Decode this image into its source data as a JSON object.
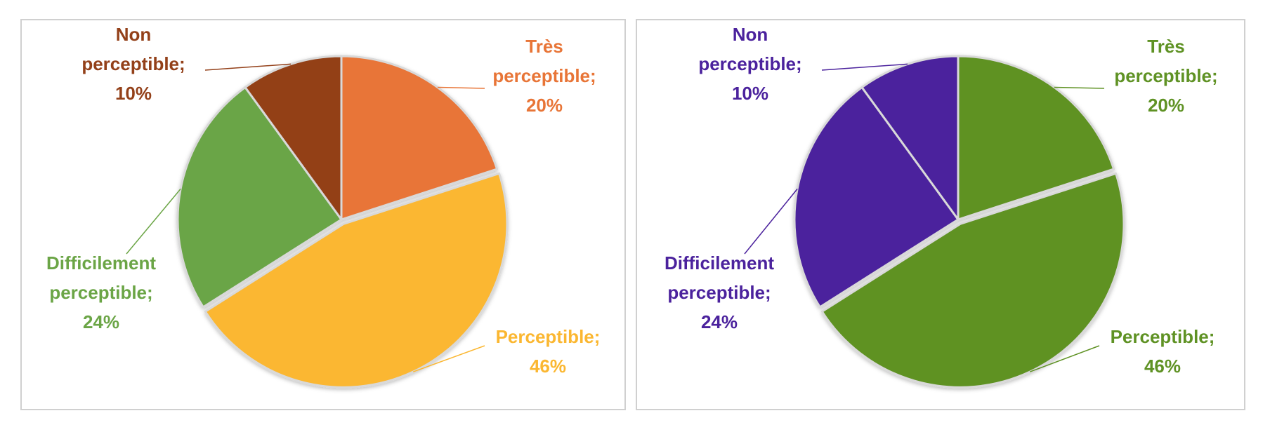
{
  "chart_data": [
    {
      "type": "pie",
      "slices": [
        {
          "label_lines": [
            "Très",
            "perceptible;",
            "20%"
          ],
          "value": 20,
          "color": "#E87537"
        },
        {
          "label_lines": [
            "Perceptible;",
            "46%"
          ],
          "value": 46,
          "color": "#FBB731"
        },
        {
          "label_lines": [
            "Difficilement",
            "perceptible;",
            "24%"
          ],
          "value": 24,
          "color": "#6BA546"
        },
        {
          "label_lines": [
            "Non",
            "perceptible;",
            "10%"
          ],
          "value": 10,
          "color": "#934019"
        }
      ],
      "label_colors": [
        "#E87537",
        "#FBB731",
        "#6BA546",
        "#934019"
      ]
    },
    {
      "type": "pie",
      "slices": [
        {
          "label_lines": [
            "Très",
            "perceptible;",
            "20%"
          ],
          "value": 20,
          "color": "#5F9224"
        },
        {
          "label_lines": [
            "Perceptible;",
            "46%"
          ],
          "value": 46,
          "color": "#5F9224"
        },
        {
          "label_lines": [
            "Difficilement",
            "perceptible;",
            "24%"
          ],
          "value": 24,
          "color": "#4B229D"
        },
        {
          "label_lines": [
            "Non",
            "perceptible;",
            "10%"
          ],
          "value": 10,
          "color": "#4B229D"
        }
      ],
      "label_colors": [
        "#5F9224",
        "#5F9224",
        "#4B229D",
        "#4B229D"
      ]
    }
  ]
}
